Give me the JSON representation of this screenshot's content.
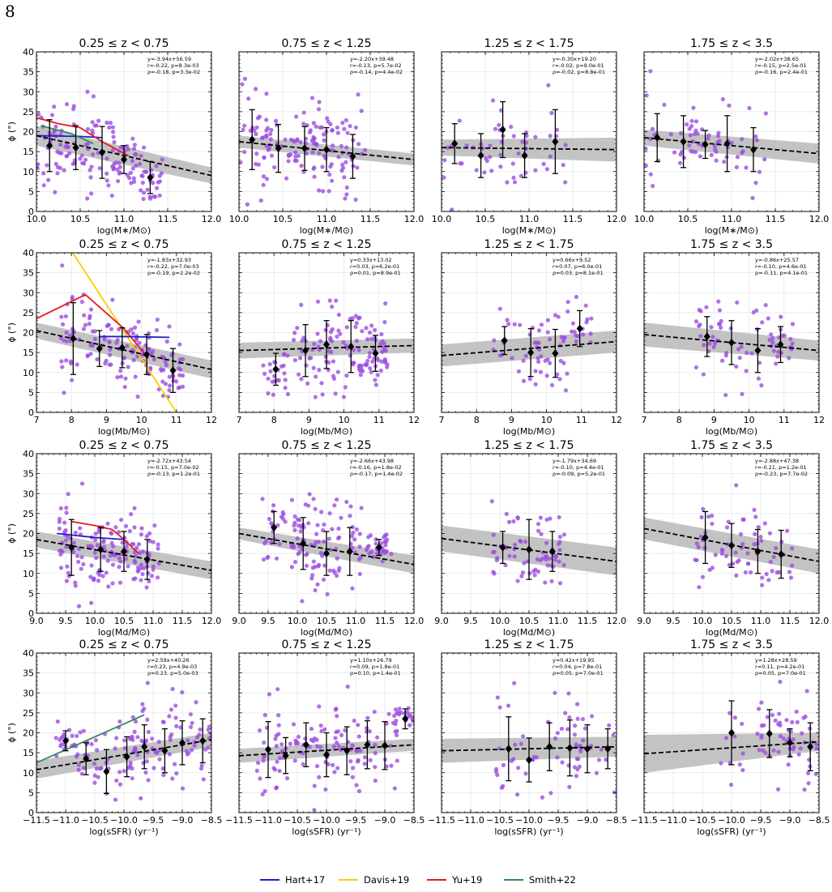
{
  "page_number": "8",
  "colors": {
    "points": "#9b4ee0",
    "binned": "#000000",
    "fit": "#000000",
    "band": "#bdbdbd",
    "Hart+17": "#1f1fd0",
    "Davis+19": "#f5d000",
    "Yu+19": "#e41a1c",
    "Smith+22": "#2e8b57"
  },
  "legend": [
    {
      "name": "Hart+17",
      "color": "#1f1fd0"
    },
    {
      "name": "Davis+19",
      "color": "#f5d000"
    },
    {
      "name": "Yu+19",
      "color": "#e41a1c"
    },
    {
      "name": "Smith+22",
      "color": "#2e8b57"
    }
  ],
  "rows": [
    {
      "xlabel": "log(M∗/M⊙)",
      "xlim": [
        10,
        12
      ],
      "xticks": [
        10,
        10.5,
        11,
        11.5,
        12
      ],
      "xtick_labels": [
        "10.0",
        "10.5",
        "11.0",
        "11.5",
        "12.0"
      ]
    },
    {
      "xlabel": "log(Mb/M⊙)",
      "xlim": [
        7,
        12
      ],
      "xticks": [
        7,
        8,
        9,
        10,
        11,
        12
      ],
      "xtick_labels": [
        "7",
        "8",
        "9",
        "10",
        "11",
        "12"
      ]
    },
    {
      "xlabel": "log(Md/M⊙)",
      "xlim": [
        9,
        12
      ],
      "xticks": [
        9,
        9.5,
        10,
        10.5,
        11,
        11.5,
        12
      ],
      "xtick_labels": [
        "9.0",
        "9.5",
        "10.0",
        "10.5",
        "11.0",
        "11.5",
        "12.0"
      ]
    },
    {
      "xlabel": "log(sSFR) (yr⁻¹)",
      "xlim": [
        -11.5,
        -8.5
      ],
      "xticks": [
        -11.5,
        -11,
        -10.5,
        -10,
        -9.5,
        -9,
        -8.5
      ],
      "xtick_labels": [
        "−11.5",
        "−11.0",
        "−10.5",
        "−10.0",
        "−9.5",
        "−9.0",
        "−8.5"
      ]
    }
  ],
  "ylabel": "ϕ (°)",
  "ylim": [
    0,
    40
  ],
  "yticks": [
    0,
    5,
    10,
    15,
    20,
    25,
    30,
    35,
    40
  ],
  "chart_data": [
    {
      "type": "scatter",
      "row": 0,
      "col": 0,
      "title": "0.25 ≤ z < 0.75",
      "annotation": [
        "y=-3.94x+56.59",
        "r=-0.22, p=8.3e-03",
        "ρ=-0.18, p=3.3e-02"
      ],
      "fit": {
        "slope": -3.94,
        "intercept": 56.59,
        "band": [
          [
            10,
            16.5,
            21.5
          ],
          [
            12,
            7.0,
            11.0
          ]
        ]
      },
      "binned": [
        {
          "x": 10.15,
          "y": 16.5,
          "err": 6.5
        },
        {
          "x": 10.45,
          "y": 16.0,
          "err": 5.5
        },
        {
          "x": 10.75,
          "y": 14.8,
          "err": 6.5
        },
        {
          "x": 11.0,
          "y": 13.0,
          "err": 3.5
        },
        {
          "x": 11.3,
          "y": 8.5,
          "err": 4.0
        }
      ],
      "refs": [
        {
          "name": "Hart+17",
          "points": [
            [
              10.0,
              19.0
            ],
            [
              10.5,
              18.8
            ],
            [
              10.75,
              18.5
            ]
          ]
        },
        {
          "name": "Yu+19",
          "points": [
            [
              10.0,
              23.5
            ],
            [
              10.25,
              22.0
            ],
            [
              10.5,
              21.0
            ],
            [
              10.75,
              17.5
            ],
            [
              11.05,
              14.0
            ]
          ]
        },
        {
          "name": "Smith+22",
          "points": [
            [
              10.05,
              21.5
            ],
            [
              10.4,
              19.5
            ],
            [
              10.65,
              17.0
            ]
          ]
        }
      ]
    },
    {
      "type": "scatter",
      "row": 0,
      "col": 1,
      "title": "0.75 ≤ z < 1.25",
      "annotation": [
        "y=-2.20x+39.48",
        "r=-0.13, p=5.7e-02",
        "ρ=-0.14, p=4.4e-02"
      ],
      "fit": {
        "slope": -2.2,
        "intercept": 39.48,
        "band": [
          [
            10,
            16.0,
            19.0
          ],
          [
            12,
            11.5,
            14.5
          ]
        ]
      },
      "binned": [
        {
          "x": 10.15,
          "y": 18.0,
          "err": 7.5
        },
        {
          "x": 10.45,
          "y": 15.8,
          "err": 6.0
        },
        {
          "x": 10.75,
          "y": 15.8,
          "err": 5.5
        },
        {
          "x": 11.0,
          "y": 15.5,
          "err": 5.5
        },
        {
          "x": 11.3,
          "y": 13.8,
          "err": 5.5
        }
      ],
      "refs": []
    },
    {
      "type": "scatter",
      "row": 0,
      "col": 2,
      "title": "1.25 ≤ z < 1.75",
      "annotation": [
        "y=-0.30x+19.20",
        "r=-0.02, p=9.0e-01",
        "ρ=-0.02, p=8.8e-01"
      ],
      "fit": {
        "slope": -0.3,
        "intercept": 19.2,
        "band": [
          [
            10,
            14.0,
            18.0
          ],
          [
            12,
            12.5,
            18.5
          ]
        ]
      },
      "binned": [
        {
          "x": 10.15,
          "y": 17.0,
          "err": 5.0
        },
        {
          "x": 10.45,
          "y": 14.0,
          "err": 5.5
        },
        {
          "x": 10.7,
          "y": 20.5,
          "err": 7.0
        },
        {
          "x": 10.95,
          "y": 14.0,
          "err": 5.5
        },
        {
          "x": 11.3,
          "y": 17.5,
          "err": 8.0
        }
      ],
      "refs": []
    },
    {
      "type": "scatter",
      "row": 0,
      "col": 3,
      "title": "1.75 ≤ z < 3.5",
      "annotation": [
        "y=-2.02x+38.65",
        "r=-0.15, p=2.5e-01",
        "ρ=-0.16, p=2.4e-01"
      ],
      "fit": {
        "slope": -2.02,
        "intercept": 38.65,
        "band": [
          [
            10,
            16.5,
            20.5
          ],
          [
            12,
            12.0,
            17.0
          ]
        ]
      },
      "binned": [
        {
          "x": 10.15,
          "y": 18.5,
          "err": 6.0
        },
        {
          "x": 10.45,
          "y": 17.5,
          "err": 6.5
        },
        {
          "x": 10.7,
          "y": 16.8,
          "err": 3.5
        },
        {
          "x": 10.95,
          "y": 17.0,
          "err": 7.0
        },
        {
          "x": 11.25,
          "y": 15.5,
          "err": 5.5
        }
      ],
      "refs": []
    },
    {
      "type": "scatter",
      "row": 1,
      "col": 0,
      "title": "0.25 ≤ z < 0.75",
      "annotation": [
        "y=-1.83x+32.93",
        "r=-0.22, p=7.0e-03",
        "ρ=-0.19, p=2.2e-02"
      ],
      "fit": {
        "slope": -1.83,
        "intercept": 32.93,
        "band": [
          [
            7,
            18.5,
            22.5
          ],
          [
            12,
            8.5,
            13.0
          ]
        ]
      },
      "binned": [
        {
          "x": 8.05,
          "y": 18.5,
          "err": 9.0
        },
        {
          "x": 8.8,
          "y": 16.0,
          "err": 4.5
        },
        {
          "x": 9.45,
          "y": 16.2,
          "err": 5.0
        },
        {
          "x": 10.15,
          "y": 14.5,
          "err": 5.0
        },
        {
          "x": 10.9,
          "y": 10.5,
          "err": 5.5
        }
      ],
      "refs": [
        {
          "name": "Davis+19",
          "points": [
            [
              8.0,
              40.5
            ],
            [
              11.0,
              0.0
            ]
          ]
        },
        {
          "name": "Yu+19",
          "points": [
            [
              7.0,
              23.5
            ],
            [
              8.4,
              29.5
            ],
            [
              9.5,
              21.0
            ],
            [
              10.2,
              13.5
            ]
          ]
        },
        {
          "name": "Hart+17",
          "points": [
            [
              8.8,
              19.0
            ],
            [
              9.5,
              19.0
            ],
            [
              10.8,
              18.8
            ]
          ]
        }
      ]
    },
    {
      "type": "scatter",
      "row": 1,
      "col": 1,
      "title": "0.75 ≤ z < 1.25",
      "annotation": [
        "y=0.33x+13.02",
        "r=0.03, p=6.2e-01",
        "ρ=0.01, p=8.9e-01"
      ],
      "fit": {
        "slope": 0.33,
        "intercept": 13.02,
        "band": [
          [
            7,
            13.5,
            17.5
          ],
          [
            12,
            15.0,
            18.5
          ]
        ]
      },
      "binned": [
        {
          "x": 8.05,
          "y": 10.8,
          "err": 4.0
        },
        {
          "x": 8.9,
          "y": 15.5,
          "err": 6.5
        },
        {
          "x": 9.5,
          "y": 17.0,
          "err": 6.0
        },
        {
          "x": 10.2,
          "y": 16.5,
          "err": 6.5
        },
        {
          "x": 10.9,
          "y": 14.8,
          "err": 4.5
        }
      ],
      "refs": []
    },
    {
      "type": "scatter",
      "row": 1,
      "col": 2,
      "title": "1.25 ≤ z < 1.75",
      "annotation": [
        "y=0.66x+9.52",
        "r=0.07, p=6.0e-01",
        "ρ=0.03, p=8.1e-01"
      ],
      "fit": {
        "slope": 0.66,
        "intercept": 9.52,
        "band": [
          [
            7,
            11.5,
            17.0
          ],
          [
            12,
            15.0,
            20.5
          ]
        ]
      },
      "binned": [
        {
          "x": 8.8,
          "y": 18.0,
          "err": 3.5
        },
        {
          "x": 9.55,
          "y": 15.0,
          "err": 6.0
        },
        {
          "x": 10.25,
          "y": 14.8,
          "err": 6.0
        },
        {
          "x": 10.95,
          "y": 21.0,
          "err": 4.5
        }
      ],
      "refs": []
    },
    {
      "type": "scatter",
      "row": 1,
      "col": 3,
      "title": "1.75 ≤ z < 3.5",
      "annotation": [
        "y=-0.86x+25.57",
        "r=-0.10, p=4.6e-01",
        "ρ=-0.11, p=4.1e-01"
      ],
      "fit": {
        "slope": -0.86,
        "intercept": 25.57,
        "band": [
          [
            7,
            16.5,
            22.5
          ],
          [
            12,
            13.0,
            18.0
          ]
        ]
      },
      "binned": [
        {
          "x": 8.8,
          "y": 19.0,
          "err": 5.0
        },
        {
          "x": 9.5,
          "y": 17.5,
          "err": 5.5
        },
        {
          "x": 10.25,
          "y": 15.5,
          "err": 5.5
        },
        {
          "x": 10.9,
          "y": 17.0,
          "err": 4.5
        }
      ],
      "refs": []
    },
    {
      "type": "scatter",
      "row": 2,
      "col": 0,
      "title": "0.25 ≤ z < 0.75",
      "annotation": [
        "y=-2.72x+43.54",
        "r=-0.15, p=7.0e-02",
        "ρ=-0.13, p=1.2e-01"
      ],
      "fit": {
        "slope": -2.72,
        "intercept": 43.54,
        "band": [
          [
            9,
            16.5,
            20.5
          ],
          [
            12,
            8.5,
            13.0
          ]
        ]
      },
      "binned": [
        {
          "x": 9.6,
          "y": 16.5,
          "err": 7.0
        },
        {
          "x": 10.1,
          "y": 16.0,
          "err": 5.5
        },
        {
          "x": 10.5,
          "y": 15.5,
          "err": 5.0
        },
        {
          "x": 10.9,
          "y": 13.5,
          "err": 5.0
        }
      ],
      "refs": [
        {
          "name": "Hart+17",
          "points": [
            [
              9.35,
              20.0
            ],
            [
              10.0,
              19.0
            ],
            [
              10.5,
              18.5
            ]
          ]
        },
        {
          "name": "Yu+19",
          "points": [
            [
              9.6,
              23.0
            ],
            [
              10.0,
              22.0
            ],
            [
              10.3,
              21.0
            ],
            [
              10.5,
              18.5
            ],
            [
              10.75,
              15.0
            ]
          ]
        }
      ]
    },
    {
      "type": "scatter",
      "row": 2,
      "col": 1,
      "title": "0.75 ≤ z < 1.25",
      "annotation": [
        "y=-2.66x+43.98",
        "r=-0.16, p=1.8e-02",
        "ρ=-0.17, p=1.4e-02"
      ],
      "fit": {
        "slope": -2.66,
        "intercept": 43.98,
        "band": [
          [
            9,
            18.5,
            21.5
          ],
          [
            12,
            10.0,
            14.5
          ]
        ]
      },
      "binned": [
        {
          "x": 9.6,
          "y": 21.5,
          "err": 4.0
        },
        {
          "x": 10.1,
          "y": 17.5,
          "err": 6.5
        },
        {
          "x": 10.5,
          "y": 15.0,
          "err": 5.5
        },
        {
          "x": 10.9,
          "y": 15.5,
          "err": 6.0
        },
        {
          "x": 11.4,
          "y": 16.5,
          "err": 2.0
        }
      ],
      "refs": []
    },
    {
      "type": "scatter",
      "row": 2,
      "col": 2,
      "title": "1.25 ≤ z < 1.75",
      "annotation": [
        "y=-1.79x+34.69",
        "r=-0.10, p=4.4e-01",
        "ρ=-0.09, p=5.2e-01"
      ],
      "fit": {
        "slope": -1.79,
        "intercept": 34.69,
        "band": [
          [
            9,
            15.5,
            22.0
          ],
          [
            12,
            9.5,
            16.5
          ]
        ]
      },
      "binned": [
        {
          "x": 10.05,
          "y": 16.5,
          "err": 4.0
        },
        {
          "x": 10.5,
          "y": 16.0,
          "err": 7.5
        },
        {
          "x": 10.9,
          "y": 15.5,
          "err": 5.0
        }
      ],
      "refs": []
    },
    {
      "type": "scatter",
      "row": 2,
      "col": 3,
      "title": "1.75 ≤ z < 3.5",
      "annotation": [
        "y=-2.88x+47.38",
        "r=-0.21, p=1.2e-01",
        "ρ=-0.23, p=7.7e-02"
      ],
      "fit": {
        "slope": -2.88,
        "intercept": 47.38,
        "band": [
          [
            9,
            18.5,
            24.0
          ],
          [
            12,
            10.0,
            16.0
          ]
        ]
      },
      "binned": [
        {
          "x": 10.05,
          "y": 19.0,
          "err": 6.5
        },
        {
          "x": 10.5,
          "y": 17.0,
          "err": 5.5
        },
        {
          "x": 10.95,
          "y": 15.5,
          "err": 5.5
        },
        {
          "x": 11.35,
          "y": 14.8,
          "err": 6.0
        }
      ],
      "refs": []
    },
    {
      "type": "scatter",
      "row": 3,
      "col": 0,
      "title": "0.25 ≤ z < 0.75",
      "annotation": [
        "y=2.59x+40.26",
        "r=0.23, p=4.9e-03",
        "ρ=0.23, p=5.0e-03"
      ],
      "fit": {
        "slope": 2.59,
        "intercept": 40.26,
        "band": [
          [
            -11.5,
            8.5,
            13.0
          ],
          [
            -8.5,
            16.5,
            20.0
          ]
        ]
      },
      "binned": [
        {
          "x": -11.0,
          "y": 18.0,
          "err": 2.5
        },
        {
          "x": -10.65,
          "y": 13.5,
          "err": 4.0
        },
        {
          "x": -10.3,
          "y": 10.3,
          "err": 5.5
        },
        {
          "x": -9.95,
          "y": 14.0,
          "err": 5.0
        },
        {
          "x": -9.65,
          "y": 16.5,
          "err": 5.5
        },
        {
          "x": -9.3,
          "y": 15.5,
          "err": 5.5
        },
        {
          "x": -9.0,
          "y": 17.5,
          "err": 5.5
        },
        {
          "x": -8.65,
          "y": 18.0,
          "err": 5.5
        }
      ],
      "refs": [
        {
          "name": "Smith+22",
          "points": [
            [
              -11.5,
              12.5
            ],
            [
              -9.65,
              24.5
            ]
          ]
        }
      ]
    },
    {
      "type": "scatter",
      "row": 3,
      "col": 1,
      "title": "0.75 ≤ z < 1.25",
      "annotation": [
        "y=1.10x+26.79",
        "r=0.09, p=1.8e-01",
        "ρ=0.10, p=1.4e-01"
      ],
      "fit": {
        "slope": 1.1,
        "intercept": 26.79,
        "band": [
          [
            -11.5,
            12.5,
            16.0
          ],
          [
            -8.5,
            15.5,
            18.5
          ]
        ]
      },
      "binned": [
        {
          "x": -11.0,
          "y": 15.8,
          "err": 7.0
        },
        {
          "x": -10.7,
          "y": 14.3,
          "err": 4.5
        },
        {
          "x": -10.35,
          "y": 17.0,
          "err": 5.5
        },
        {
          "x": -10.0,
          "y": 14.5,
          "err": 5.5
        },
        {
          "x": -9.65,
          "y": 15.5,
          "err": 6.0
        },
        {
          "x": -9.3,
          "y": 17.0,
          "err": 6.0
        },
        {
          "x": -9.0,
          "y": 16.8,
          "err": 6.0
        },
        {
          "x": -8.65,
          "y": 23.5,
          "err": 2.5
        }
      ],
      "refs": []
    },
    {
      "type": "scatter",
      "row": 3,
      "col": 2,
      "title": "1.25 ≤ z < 1.75",
      "annotation": [
        "y=0.42x+19.95",
        "r=0.04, p=7.8e-01",
        "ρ=0.05, p=7.0e-01"
      ],
      "fit": {
        "slope": 0.42,
        "intercept": 19.95,
        "band": [
          [
            -11.5,
            12.5,
            18.5
          ],
          [
            -8.5,
            14.0,
            19.0
          ]
        ]
      },
      "binned": [
        {
          "x": -10.35,
          "y": 16.0,
          "err": 8.0
        },
        {
          "x": -10.0,
          "y": 13.2,
          "err": 5.5
        },
        {
          "x": -9.65,
          "y": 16.5,
          "err": 6.0
        },
        {
          "x": -9.3,
          "y": 16.2,
          "err": 7.0
        },
        {
          "x": -9.0,
          "y": 16.0,
          "err": 6.0
        },
        {
          "x": -8.65,
          "y": 16.0,
          "err": 5.0
        }
      ],
      "refs": []
    },
    {
      "type": "scatter",
      "row": 3,
      "col": 3,
      "title": "1.75 ≤ z < 3.5",
      "annotation": [
        "y=1.28x+28.59",
        "r=0.11, p=4.2e-01",
        "ρ=0.05, p=7.0e-01"
      ],
      "fit": {
        "slope": 1.28,
        "intercept": 28.59,
        "band": [
          [
            -11.5,
            10.0,
            19.5
          ],
          [
            -8.5,
            15.5,
            20.0
          ]
        ]
      },
      "binned": [
        {
          "x": -10.0,
          "y": 20.0,
          "err": 8.0
        },
        {
          "x": -9.35,
          "y": 19.8,
          "err": 6.0
        },
        {
          "x": -9.0,
          "y": 17.5,
          "err": 3.5
        },
        {
          "x": -8.65,
          "y": 16.5,
          "err": 6.0
        }
      ],
      "refs": []
    }
  ]
}
